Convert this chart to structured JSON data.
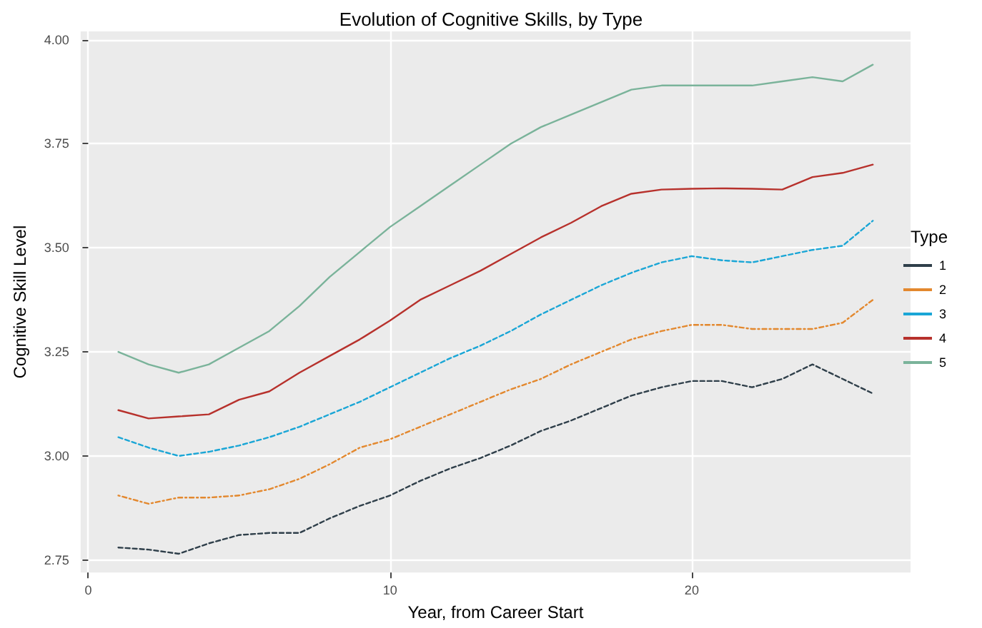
{
  "chart_data": {
    "type": "line",
    "title": "Evolution of Cognitive Skills, by Type",
    "xlabel": "Year, from Career Start",
    "ylabel": "Cognitive Skill Level",
    "legend_title": "Type",
    "x": [
      1,
      2,
      3,
      4,
      5,
      6,
      7,
      8,
      9,
      10,
      11,
      12,
      13,
      14,
      15,
      16,
      17,
      18,
      19,
      20,
      21,
      22,
      23,
      24,
      25,
      26
    ],
    "series": [
      {
        "name": "1",
        "color": "#2f3f4a",
        "line_style": "dashed",
        "values": [
          2.78,
          2.775,
          2.765,
          2.79,
          2.81,
          2.815,
          2.815,
          2.85,
          2.88,
          2.905,
          2.94,
          2.97,
          2.995,
          3.025,
          3.06,
          3.085,
          3.115,
          3.145,
          3.165,
          3.18,
          3.18,
          3.165,
          3.185,
          3.22,
          3.185,
          3.15
        ]
      },
      {
        "name": "2",
        "color": "#e3882e",
        "line_style": "dotted",
        "values": [
          2.905,
          2.885,
          2.9,
          2.9,
          2.905,
          2.92,
          2.945,
          2.98,
          3.02,
          3.04,
          3.07,
          3.1,
          3.13,
          3.16,
          3.185,
          3.22,
          3.25,
          3.28,
          3.3,
          3.315,
          3.315,
          3.305,
          3.305,
          3.305,
          3.32,
          3.375
        ]
      },
      {
        "name": "3",
        "color": "#1aa6d6",
        "line_style": "dashed",
        "values": [
          3.045,
          3.02,
          3.0,
          3.01,
          3.025,
          3.045,
          3.07,
          3.1,
          3.13,
          3.165,
          3.2,
          3.235,
          3.265,
          3.3,
          3.34,
          3.375,
          3.41,
          3.44,
          3.465,
          3.48,
          3.47,
          3.465,
          3.48,
          3.495,
          3.505,
          3.565
        ]
      },
      {
        "name": "4",
        "color": "#b7312c",
        "line_style": "solid",
        "values": [
          3.11,
          3.09,
          3.095,
          3.1,
          3.135,
          3.155,
          3.2,
          3.24,
          3.28,
          3.325,
          3.375,
          3.41,
          3.445,
          3.485,
          3.525,
          3.56,
          3.6,
          3.63,
          3.64,
          3.642,
          3.643,
          3.642,
          3.64,
          3.67,
          3.68,
          3.7
        ]
      },
      {
        "name": "5",
        "color": "#7ab39a",
        "line_style": "solid",
        "values": [
          3.25,
          3.22,
          3.2,
          3.22,
          3.26,
          3.3,
          3.36,
          3.43,
          3.49,
          3.55,
          3.6,
          3.65,
          3.7,
          3.75,
          3.79,
          3.82,
          3.85,
          3.88,
          3.89,
          3.89,
          3.89,
          3.89,
          3.9,
          3.91,
          3.9,
          3.94
        ]
      }
    ],
    "xlim": [
      -0.25,
      27.25
    ],
    "xticks": [
      0,
      10,
      20
    ],
    "ylim": [
      2.72,
      4.02
    ],
    "yticks": [
      {
        "value": 2.75,
        "label": "2.75"
      },
      {
        "value": 3.0,
        "label": "3.00"
      },
      {
        "value": 3.25,
        "label": "3.25"
      },
      {
        "value": 3.5,
        "label": "3.50"
      },
      {
        "value": 3.75,
        "label": "3.75"
      },
      {
        "value": 4.0,
        "label": "4.00"
      }
    ],
    "grid": true,
    "legend": "right",
    "marker": "none"
  }
}
